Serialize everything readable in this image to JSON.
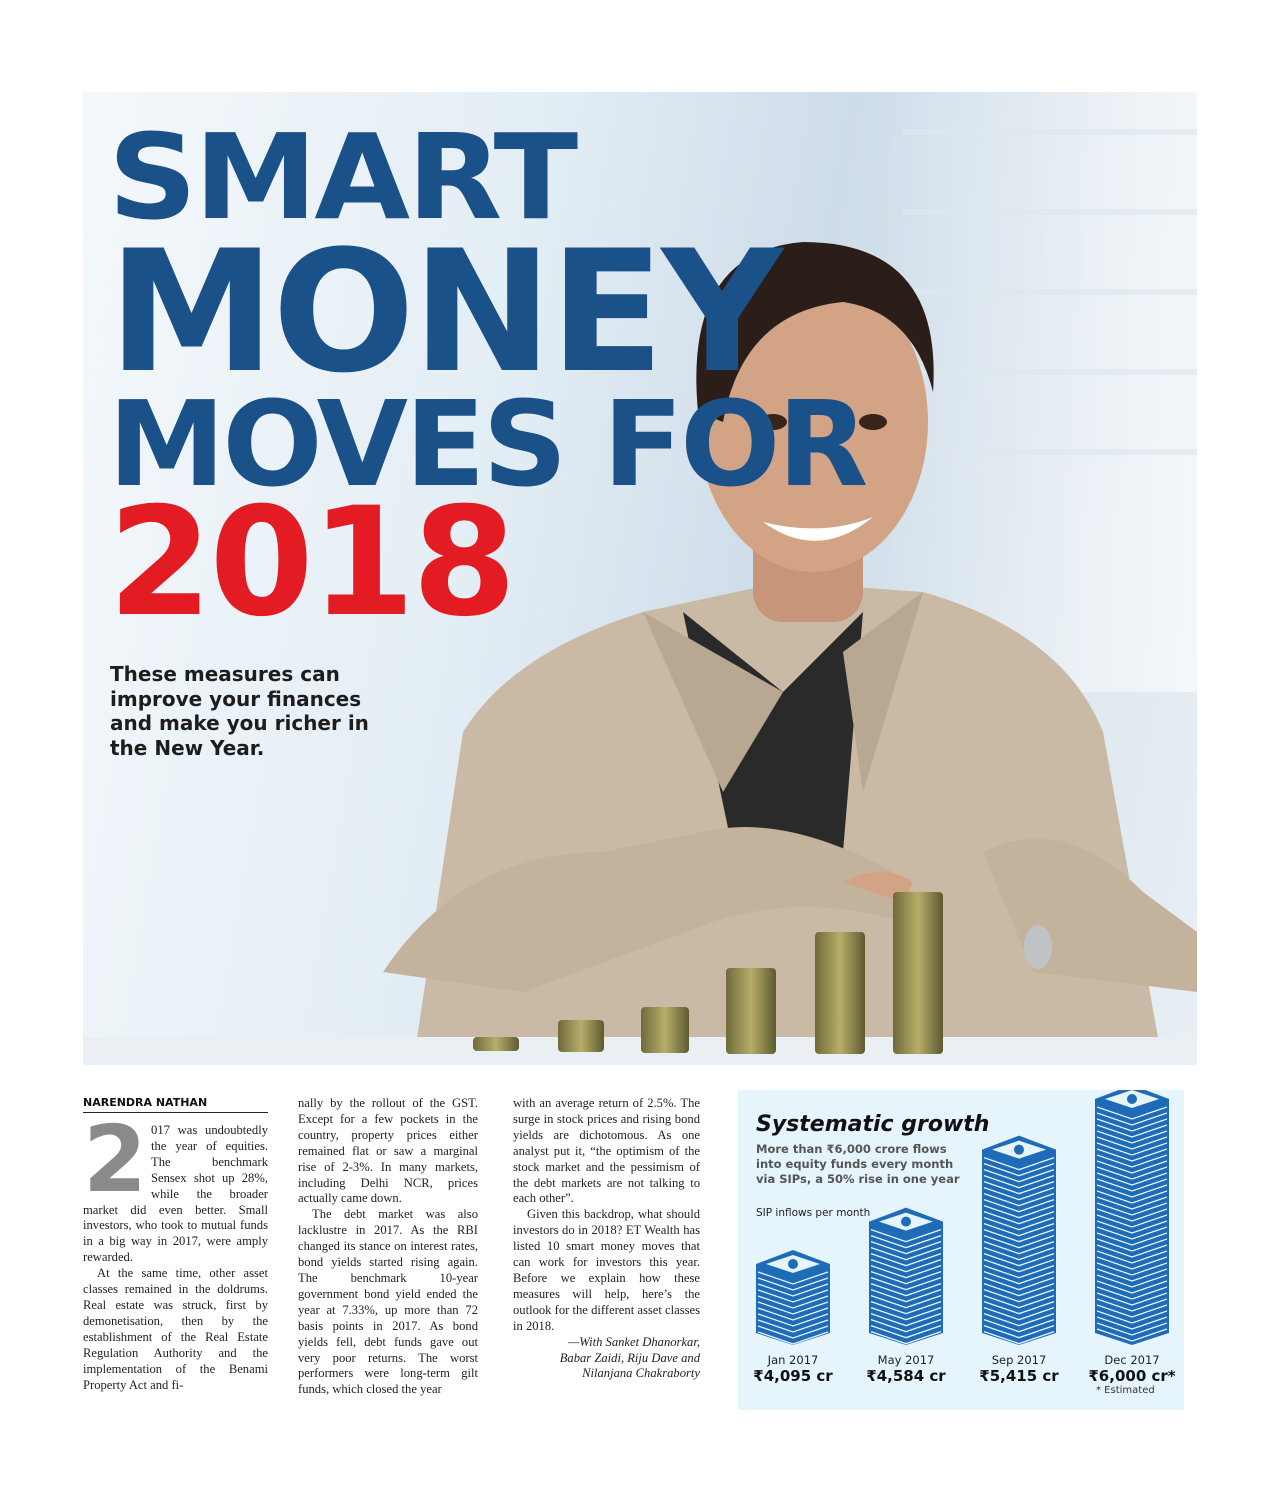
{
  "headline": {
    "line1": "SMART",
    "line2": "MONEY",
    "line3": "MOVES FOR",
    "line4": "2018"
  },
  "dek": "These measures can improve your finances and make you richer in the New Year.",
  "colors": {
    "headline_blue": "#1b5189",
    "headline_red": "#e31b23",
    "infographic_bg": "#e6f4fc",
    "bill_blue": "#1e6bb8"
  },
  "article": {
    "byline": "NARENDRA NATHAN",
    "drop_cap": "2",
    "paragraphs": [
      "017 was undoubtedly the year of equities. The benchmark Sensex shot up 28%, while the broader market did even better. Small investors, who took to mutual funds in a big way in 2017, were amply rewarded.",
      "At the same time, other asset classes remained in the doldrums. Real estate was struck, first by demonetisation, then by the establishment of the Real Estate Regulation Authority and the implementation of the Benami Property Act and finally by the rollout of the GST. Except for a few pockets in the country, property prices either remained flat or saw a marginal rise of 2-3%. In many markets, including Delhi NCR, prices actually came down.",
      "The debt market was also lacklustre in 2017. As the RBI changed its stance on interest rates, bond yields started rising again. The benchmark 10-year government bond yield ended the year at 7.33%, up more than 72 basis points in 2017. As bond yields fell, debt funds gave out very poor returns. The worst performers were long-term gilt funds, which closed the year with an average return of 2.5%. The surge in stock prices and rising bond yields are dichotomous. As one analyst put it, “the optimism of the stock market and the pessimism of the debt markets are not talking to each other”.",
      "Given this backdrop, what should investors do in 2018? ET Wealth has listed 10 smart money moves that can work for investors this year. Before we explain how these measures will help, here’s the outlook for the different asset classes in 2018."
    ],
    "col1_p1": "017 was undoubtedly the year of equities. The benchmark Sensex shot up 28%, while the broader market did even better. Small investors, who took to mutual funds in a big way in 2017, were amply rewarded.",
    "col1_p2": "At the same time, other asset classes remained in the doldrums. Real estate was struck, first by demonetisation, then by the establishment of the Real Estate Regulation Authority and the implementation of the Benami Property Act and fi-",
    "col2_p1": "nally by the rollout of the GST. Except for a few pockets in the country, property prices either remained flat or saw a marginal rise of 2-3%. In many markets, including Delhi NCR, prices actually came down.",
    "col2_p2": "The debt market was also lacklustre in 2017. As the RBI changed its stance on interest rates, bond yields started rising again. The benchmark 10-year government bond yield ended the year at 7.33%, up more than 72 basis points in 2017. As bond yields fell, debt funds gave out very poor returns. The worst performers were long-term gilt funds, which closed the year",
    "col3_p1": "with an average return of 2.5%. The surge in stock prices and rising bond yields are dichotomous. As one analyst put it, “the optimism of the stock market and the pessimism of the debt markets are not talking to each other”.",
    "col3_p2": "Given this backdrop, what should investors do in 2018? ET Wealth has listed 10 smart money moves that can work for investors this year. Before we explain how these measures will help, here’s the outlook for the different asset classes in 2018.",
    "credit_line1": "—With Sanket Dhanorkar,",
    "credit_line2": "Babar Zaidi, Riju Dave and",
    "credit_line3": "Nilanjana Chakraborty"
  },
  "chart_data": {
    "type": "bar",
    "title": "Systematic growth",
    "subtitle": "More than ₹6,000 crore flows into equity funds every month via SIPs, a 50% rise in one year",
    "ylabel": "SIP inflows per month",
    "categories": [
      "Jan 2017",
      "May 2017",
      "Sep 2017",
      "Dec 2017"
    ],
    "values": [
      4095,
      4584,
      5415,
      6000
    ],
    "value_labels": [
      "₹4,095 cr",
      "₹4,584 cr",
      "₹5,415 cr",
      "₹6,000 cr*"
    ],
    "unit": "₹ crore",
    "footnote": "* Estimated",
    "mark": "stack-of-banknotes-icon"
  }
}
